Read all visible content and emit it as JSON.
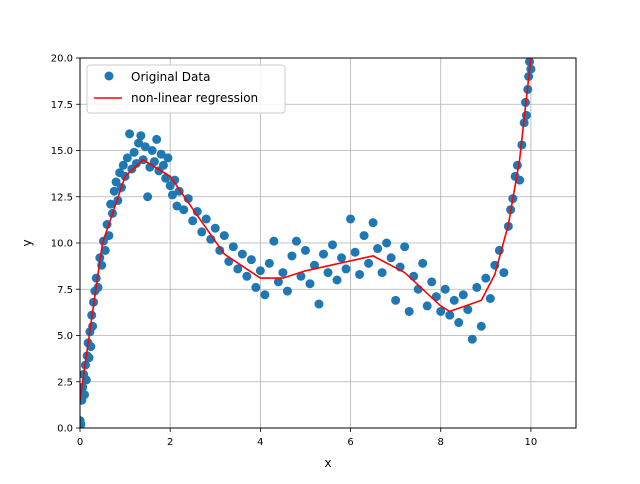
{
  "chart_data": {
    "type": "scatter",
    "title": "",
    "xlabel": "x",
    "ylabel": "y",
    "xlim": [
      0,
      11
    ],
    "ylim": [
      0,
      20
    ],
    "grid": true,
    "xticks": [
      0,
      2,
      4,
      6,
      8,
      10
    ],
    "yticks": [
      0.0,
      2.5,
      5.0,
      7.5,
      10.0,
      12.5,
      15.0,
      17.5,
      20.0
    ],
    "xtick_labels": [
      "0",
      "2",
      "4",
      "6",
      "8",
      "10"
    ],
    "ytick_labels": [
      "0.0",
      "2.5",
      "5.0",
      "7.5",
      "10.0",
      "12.5",
      "15.0",
      "17.5",
      "20.0"
    ],
    "legend": {
      "position": "top-left",
      "entries": [
        "Original Data",
        "non-linear regression"
      ]
    },
    "series": [
      {
        "name": "Original Data",
        "kind": "scatter",
        "color": "#1f77b4",
        "points": [
          [
            0.0,
            0.4
          ],
          [
            0.02,
            0.2
          ],
          [
            0.04,
            1.5
          ],
          [
            0.06,
            2.2
          ],
          [
            0.08,
            2.9
          ],
          [
            0.1,
            1.8
          ],
          [
            0.12,
            3.4
          ],
          [
            0.14,
            2.6
          ],
          [
            0.16,
            3.9
          ],
          [
            0.18,
            4.6
          ],
          [
            0.2,
            3.8
          ],
          [
            0.22,
            5.2
          ],
          [
            0.24,
            4.4
          ],
          [
            0.26,
            6.1
          ],
          [
            0.28,
            5.5
          ],
          [
            0.3,
            6.8
          ],
          [
            0.33,
            7.4
          ],
          [
            0.36,
            8.1
          ],
          [
            0.4,
            7.6
          ],
          [
            0.44,
            9.2
          ],
          [
            0.48,
            8.8
          ],
          [
            0.52,
            10.1
          ],
          [
            0.56,
            9.6
          ],
          [
            0.6,
            11.0
          ],
          [
            0.64,
            10.4
          ],
          [
            0.68,
            12.1
          ],
          [
            0.72,
            11.6
          ],
          [
            0.76,
            12.8
          ],
          [
            0.8,
            13.3
          ],
          [
            0.84,
            12.3
          ],
          [
            0.88,
            13.8
          ],
          [
            0.92,
            13.0
          ],
          [
            0.96,
            14.2
          ],
          [
            1.0,
            13.6
          ],
          [
            1.05,
            14.6
          ],
          [
            1.1,
            15.9
          ],
          [
            1.15,
            14.0
          ],
          [
            1.2,
            14.9
          ],
          [
            1.25,
            14.3
          ],
          [
            1.3,
            15.4
          ],
          [
            1.35,
            15.8
          ],
          [
            1.4,
            14.5
          ],
          [
            1.45,
            15.2
          ],
          [
            1.5,
            12.5
          ],
          [
            1.55,
            14.1
          ],
          [
            1.6,
            15.0
          ],
          [
            1.65,
            14.4
          ],
          [
            1.7,
            15.6
          ],
          [
            1.75,
            13.9
          ],
          [
            1.8,
            14.8
          ],
          [
            1.85,
            14.2
          ],
          [
            1.9,
            13.5
          ],
          [
            1.95,
            14.6
          ],
          [
            2.0,
            13.1
          ],
          [
            2.05,
            12.6
          ],
          [
            2.1,
            13.4
          ],
          [
            2.15,
            12.0
          ],
          [
            2.2,
            12.8
          ],
          [
            2.3,
            11.8
          ],
          [
            2.4,
            12.4
          ],
          [
            2.5,
            11.2
          ],
          [
            2.6,
            11.7
          ],
          [
            2.7,
            10.6
          ],
          [
            2.8,
            11.3
          ],
          [
            2.9,
            10.2
          ],
          [
            3.0,
            10.8
          ],
          [
            3.1,
            9.6
          ],
          [
            3.2,
            10.4
          ],
          [
            3.3,
            9.0
          ],
          [
            3.4,
            9.8
          ],
          [
            3.5,
            8.6
          ],
          [
            3.6,
            9.4
          ],
          [
            3.7,
            8.2
          ],
          [
            3.8,
            9.1
          ],
          [
            3.9,
            7.6
          ],
          [
            4.0,
            8.5
          ],
          [
            4.1,
            7.2
          ],
          [
            4.2,
            8.9
          ],
          [
            4.3,
            10.1
          ],
          [
            4.4,
            7.9
          ],
          [
            4.5,
            8.4
          ],
          [
            4.6,
            7.4
          ],
          [
            4.7,
            9.3
          ],
          [
            4.8,
            10.1
          ],
          [
            4.9,
            8.2
          ],
          [
            5.0,
            9.6
          ],
          [
            5.1,
            7.8
          ],
          [
            5.2,
            8.8
          ],
          [
            5.3,
            6.7
          ],
          [
            5.4,
            9.4
          ],
          [
            5.5,
            8.4
          ],
          [
            5.6,
            9.9
          ],
          [
            5.7,
            8.0
          ],
          [
            5.8,
            9.2
          ],
          [
            5.9,
            8.6
          ],
          [
            6.0,
            11.3
          ],
          [
            6.1,
            9.5
          ],
          [
            6.2,
            8.3
          ],
          [
            6.3,
            10.4
          ],
          [
            6.4,
            8.9
          ],
          [
            6.5,
            11.1
          ],
          [
            6.6,
            9.7
          ],
          [
            6.7,
            8.4
          ],
          [
            6.8,
            10.0
          ],
          [
            6.9,
            9.2
          ],
          [
            7.0,
            6.9
          ],
          [
            7.1,
            8.7
          ],
          [
            7.2,
            9.8
          ],
          [
            7.3,
            6.3
          ],
          [
            7.4,
            8.2
          ],
          [
            7.5,
            7.5
          ],
          [
            7.6,
            8.9
          ],
          [
            7.7,
            6.6
          ],
          [
            7.8,
            7.9
          ],
          [
            7.9,
            7.1
          ],
          [
            8.0,
            6.3
          ],
          [
            8.1,
            7.5
          ],
          [
            8.2,
            6.1
          ],
          [
            8.3,
            6.9
          ],
          [
            8.4,
            5.7
          ],
          [
            8.5,
            7.2
          ],
          [
            8.6,
            6.4
          ],
          [
            8.7,
            4.8
          ],
          [
            8.8,
            7.6
          ],
          [
            8.9,
            5.5
          ],
          [
            9.0,
            8.1
          ],
          [
            9.1,
            7.0
          ],
          [
            9.2,
            8.8
          ],
          [
            9.3,
            9.6
          ],
          [
            9.4,
            8.4
          ],
          [
            9.5,
            10.9
          ],
          [
            9.55,
            11.8
          ],
          [
            9.6,
            12.4
          ],
          [
            9.65,
            13.6
          ],
          [
            9.7,
            14.2
          ],
          [
            9.75,
            13.4
          ],
          [
            9.8,
            15.3
          ],
          [
            9.85,
            16.5
          ],
          [
            9.88,
            17.6
          ],
          [
            9.9,
            16.9
          ],
          [
            9.93,
            18.3
          ],
          [
            9.95,
            19.0
          ],
          [
            9.97,
            19.8
          ],
          [
            10.0,
            19.4
          ]
        ]
      },
      {
        "name": "non-linear regression",
        "kind": "line",
        "color": "#ff0000",
        "points": [
          [
            0.0,
            1.5
          ],
          [
            0.5,
            10.0
          ],
          [
            1.0,
            13.6
          ],
          [
            1.4,
            14.5
          ],
          [
            2.0,
            13.6
          ],
          [
            2.6,
            11.5
          ],
          [
            3.2,
            9.4
          ],
          [
            4.0,
            8.1
          ],
          [
            4.5,
            8.1
          ],
          [
            5.0,
            8.5
          ],
          [
            6.5,
            9.3
          ],
          [
            7.2,
            8.4
          ],
          [
            8.0,
            6.6
          ],
          [
            8.2,
            6.3
          ],
          [
            8.9,
            6.9
          ],
          [
            9.2,
            8.3
          ],
          [
            9.5,
            11.0
          ],
          [
            9.75,
            14.5
          ],
          [
            10.0,
            20.0
          ]
        ]
      }
    ]
  },
  "colors": {
    "scatter": "#1f77b4",
    "regression": "#ff0000",
    "grid": "#b0b0b0"
  }
}
